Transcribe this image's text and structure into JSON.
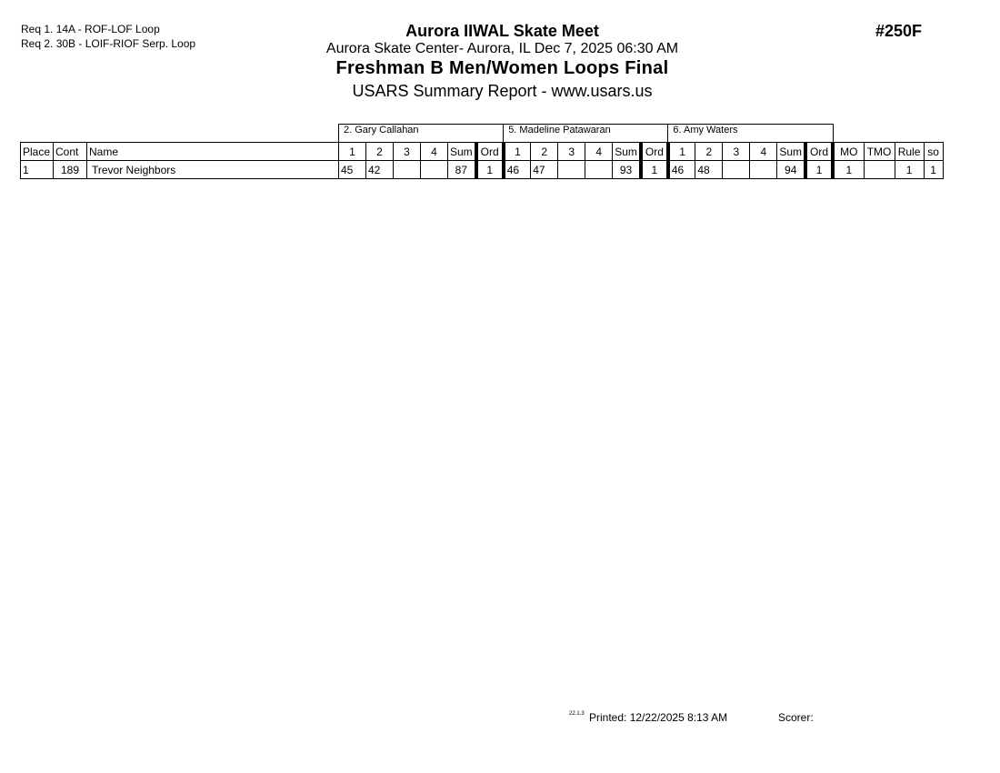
{
  "requirements": [
    "Req  1.  14A - ROF-LOF Loop",
    "Req  2.  30B - LOIF-RIOF Serp. Loop"
  ],
  "header": {
    "title": "Aurora IIWAL Skate Meet",
    "location": "Aurora Skate Center- Aurora, IL  Dec 7, 2025  06:30 AM",
    "event": "Freshman B Men/Women Loops Final",
    "report": "USARS Summary Report - www.usars.us",
    "event_number": "#250F"
  },
  "judges": [
    "2.  Gary Callahan",
    "5.  Madeline Patawaran",
    "6.  Amy Waters"
  ],
  "columns": {
    "place": "Place",
    "cont": "Cont",
    "name": "Name",
    "judge_cols": [
      "1",
      "2",
      "3",
      "4",
      "Sum",
      "Ord"
    ],
    "mo": "MO",
    "tmo": "TMO",
    "rule": "Rule",
    "so": "so"
  },
  "rows": [
    {
      "place": "1",
      "cont": "189",
      "name": "Trevor Neighbors",
      "scores": [
        [
          "45",
          "42",
          "",
          "",
          "87",
          "1"
        ],
        [
          "46",
          "47",
          "",
          "",
          "93",
          "1"
        ],
        [
          "46",
          "48",
          "",
          "",
          "94",
          "1"
        ]
      ],
      "mo": "1",
      "tmo": "",
      "rule": "1",
      "so": "1"
    }
  ],
  "footer": {
    "version": "22.1.3",
    "printed": "Printed:  12/22/2025  8:13 AM",
    "scorer": "Scorer:"
  }
}
